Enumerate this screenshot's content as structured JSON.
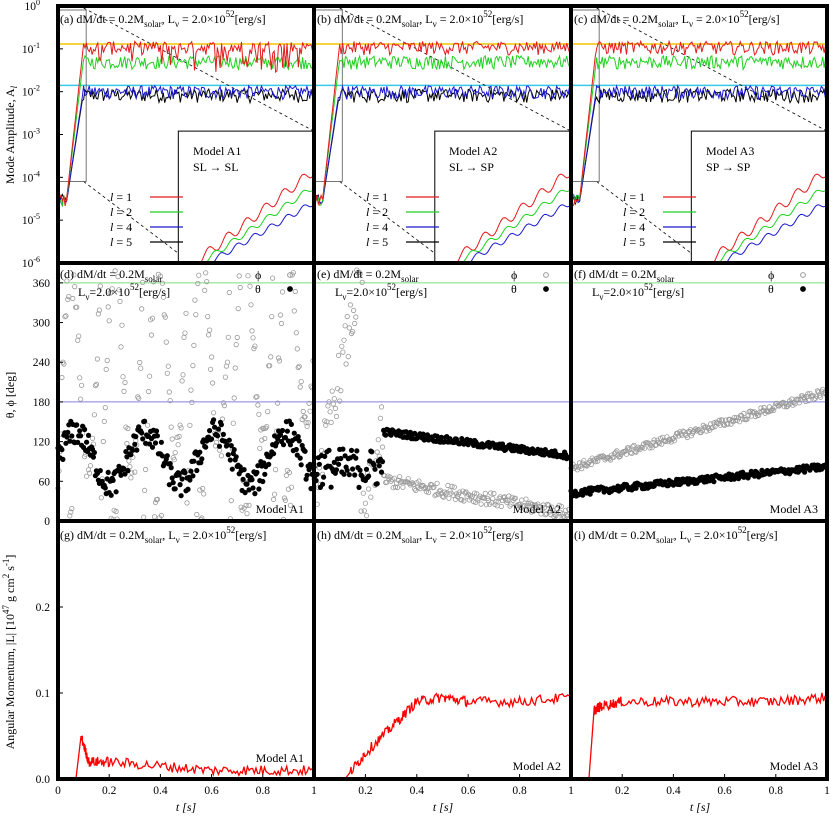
{
  "colors": {
    "l1": "#e41a1c",
    "l2": "#1fd21f",
    "l4": "#1a1acf",
    "l5": "#000000",
    "yellow_ref": "#f5c400",
    "cyan_ref": "#38c8e8",
    "green_ref": "#7fdc7f",
    "blue_ref": "#8080e8",
    "phi_marker": "#999999",
    "theta_marker": "#000000",
    "angmom": "#ff0000"
  },
  "axes": {
    "top_ylabel": "Mode Amplitude, A",
    "top_ylabel_sub": "l",
    "mid_ylabel": "θ, ϕ [deg]",
    "bot_ylabel": "Angular Momentum, |L| [10",
    "bot_ylabel_exp": "47",
    "bot_ylabel_tail": " g cm",
    "bot_ylabel_exp2": "2",
    "bot_ylabel_tail2": " s",
    "bot_ylabel_exp3": "-1",
    "bot_ylabel_end": "]",
    "xlabel": "t [s]",
    "top_yticks_base": "10",
    "top_yticks_exps": [
      "0",
      "-1",
      "-2",
      "-3",
      "-4",
      "-5",
      "-6"
    ],
    "mid_yticks": [
      "0",
      "60",
      "120",
      "180",
      "240",
      "300",
      "360"
    ],
    "bot_yticks": [
      "0.0",
      "0.1",
      "0.2"
    ],
    "xticks": [
      "0",
      "0.2",
      "0.4",
      "0.6",
      "0.8",
      "1"
    ]
  },
  "headers": {
    "top": [
      {
        "tag": "(a) dM/dt = 0.2M",
        "sub": "solar",
        "mid": ", L",
        "nu": "ν",
        "eq": " = 2.0×10",
        "exp": "52",
        "unit": "[erg/s]"
      },
      {
        "tag": "(b) dM/dt = 0.2M",
        "sub": "solar",
        "mid": ", L",
        "nu": "ν",
        "eq": " = 2.0×10",
        "exp": "52",
        "unit": "[erg/s]"
      },
      {
        "tag": "(c) dM/dt = 0.2M",
        "sub": "solar",
        "mid": ", L",
        "nu": "ν",
        "eq": " = 2.0×10",
        "exp": "52",
        "unit": "[erg/s]"
      }
    ],
    "mid": [
      {
        "tag": "(d) dM/dt = 0.2M",
        "sub": "solar",
        "l2a": "L",
        "nu": "ν",
        "l2b": "=2.0×10",
        "exp": "52",
        "unit": "[erg/s]"
      },
      {
        "tag": "(e) dM/dt = 0.2M",
        "sub": "solar",
        "l2a": "L",
        "nu": "ν",
        "l2b": "=2.0×10",
        "exp": "52",
        "unit": "[erg/s]"
      },
      {
        "tag": "(f) dM/dt = 0.2M",
        "sub": "solar",
        "l2a": "L",
        "nu": "ν",
        "l2b": "=2.0×10",
        "exp": "52",
        "unit": "[erg/s]"
      }
    ],
    "bot": [
      {
        "tag": "(g) dM/dt = 0.2M",
        "sub": "solar",
        "mid": ", L",
        "nu": "ν",
        "eq": " = 2.0×10",
        "exp": "52",
        "unit": "[erg/s]"
      },
      {
        "tag": "(h) dM/dt = 0.2M",
        "sub": "solar",
        "mid": ", L",
        "nu": "ν",
        "eq": " = 2.0×10",
        "exp": "52",
        "unit": "[erg/s]"
      },
      {
        "tag": "(i) dM/dt = 0.2M",
        "sub": "solar",
        "mid": ", L",
        "nu": "ν",
        "eq": " = 2.0×10",
        "exp": "52",
        "unit": "[erg/s]"
      }
    ]
  },
  "models": [
    {
      "name": "Model A1",
      "transition": "SL → SL"
    },
    {
      "name": "Model A2",
      "transition": "SL → SP"
    },
    {
      "name": "Model A3",
      "transition": "SP → SP"
    }
  ],
  "legend_top": [
    {
      "pre": "l",
      "text": " = 1",
      "color": "#e41a1c"
    },
    {
      "pre": "l",
      "text": " = 2",
      "color": "#1fd21f"
    },
    {
      "pre": "l",
      "text": " = 4",
      "color": "#1a1acf"
    },
    {
      "pre": "l",
      "text": " = 5",
      "color": "#000000"
    }
  ],
  "legend_mid": [
    {
      "text": "ϕ",
      "color": "#999999"
    },
    {
      "text": "θ",
      "color": "#000000"
    }
  ],
  "chart_data": [
    {
      "type": "line",
      "panels": [
        "(a) Model A1",
        "(b) Model A2",
        "(c) Model A3"
      ],
      "yscale": "log",
      "ylim": [
        1e-06,
        1
      ],
      "xlim": [
        0,
        1
      ],
      "series": [
        {
          "name": "l = 1",
          "saturation_amplitude": 0.13,
          "saturation_time": 0.1
        },
        {
          "name": "l = 2",
          "saturation_amplitude": 0.06,
          "saturation_time": 0.1
        },
        {
          "name": "l = 4",
          "saturation_amplitude": 0.012,
          "saturation_time": 0.1
        },
        {
          "name": "l = 5",
          "saturation_amplitude": 0.01,
          "saturation_time": 0.1
        }
      ],
      "reference_lines": [
        0.13,
        0.014
      ]
    },
    {
      "type": "scatter",
      "panels": [
        "(d) Model A1",
        "(e) Model A2",
        "(f) Model A3"
      ],
      "ylim": [
        0,
        390
      ],
      "xlim": [
        0,
        1
      ],
      "reference_lines": [
        180,
        360
      ],
      "series": [
        {
          "name": "ϕ",
          "A1_mean": 200,
          "A2_late": [
            [
              0.3,
              60
            ],
            [
              0.6,
              60
            ],
            [
              1.0,
              10
            ]
          ],
          "A3_path": [
            [
              0.0,
              80
            ],
            [
              0.4,
              140
            ],
            [
              0.7,
              165
            ],
            [
              1.0,
              200
            ]
          ]
        },
        {
          "name": "θ",
          "A1_mean": 100,
          "A2_path": [
            [
              0.0,
              80
            ],
            [
              0.27,
              140
            ],
            [
              0.6,
              110
            ],
            [
              1.0,
              100
            ]
          ],
          "A3_path": [
            [
              0.0,
              40
            ],
            [
              0.3,
              60
            ],
            [
              0.6,
              75
            ],
            [
              1.0,
              80
            ]
          ]
        }
      ]
    },
    {
      "type": "line",
      "panels": [
        "(g) Model A1",
        "(h) Model A2",
        "(i) Model A3"
      ],
      "ylim": [
        0,
        0.3
      ],
      "xlim": [
        0,
        1
      ],
      "series": [
        {
          "name": "|L|",
          "A1": {
            "x": [
              0.07,
              0.09,
              0.12,
              0.2,
              0.4,
              0.6,
              0.8,
              1.0
            ],
            "y": [
              0.0,
              0.05,
              0.02,
              0.02,
              0.015,
              0.01,
              0.01,
              0.01
            ]
          },
          "A2": {
            "x": [
              0.12,
              0.2,
              0.3,
              0.4,
              0.5,
              0.6,
              0.8,
              1.0
            ],
            "y": [
              0.0,
              0.03,
              0.06,
              0.09,
              0.095,
              0.09,
              0.09,
              0.095
            ]
          },
          "A3": {
            "x": [
              0.07,
              0.09,
              0.12,
              0.2,
              0.4,
              0.6,
              0.8,
              1.0
            ],
            "y": [
              0.0,
              0.08,
              0.085,
              0.09,
              0.09,
              0.09,
              0.09,
              0.095
            ]
          }
        }
      ]
    }
  ]
}
